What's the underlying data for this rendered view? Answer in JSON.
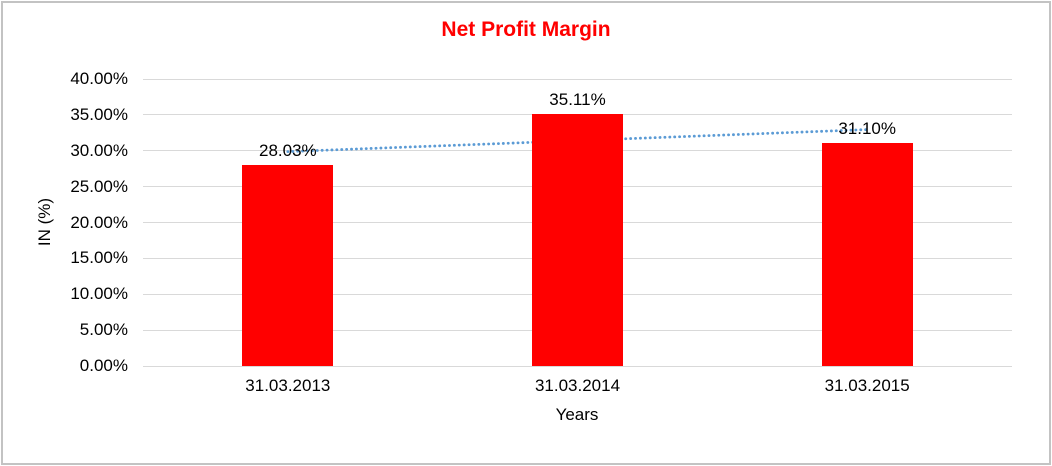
{
  "chart_data": {
    "type": "bar",
    "title": "Net Profit Margin",
    "title_color": "#FF0000",
    "categories": [
      "31.03.2013",
      "31.03.2014",
      "31.03.2015"
    ],
    "values": [
      28.03,
      35.11,
      31.1
    ],
    "value_labels": [
      "28.03%",
      "35.11%",
      "31.10%"
    ],
    "bar_color": "#FF0000",
    "xlabel": "Years",
    "ylabel": "IN (%)",
    "ylim": [
      0,
      40
    ],
    "ytick_step": 5,
    "ytick_labels": [
      "0.00%",
      "5.00%",
      "10.00%",
      "15.00%",
      "20.00%",
      "25.00%",
      "30.00%",
      "35.00%",
      "40.00%"
    ],
    "grid": "horizontal",
    "gridline_color": "#D9D9D9",
    "legend": "none",
    "trendline": {
      "type": "linear",
      "style": "dotted",
      "color": "#5B9BD5",
      "start_value": 29.88,
      "end_value": 32.95
    }
  }
}
